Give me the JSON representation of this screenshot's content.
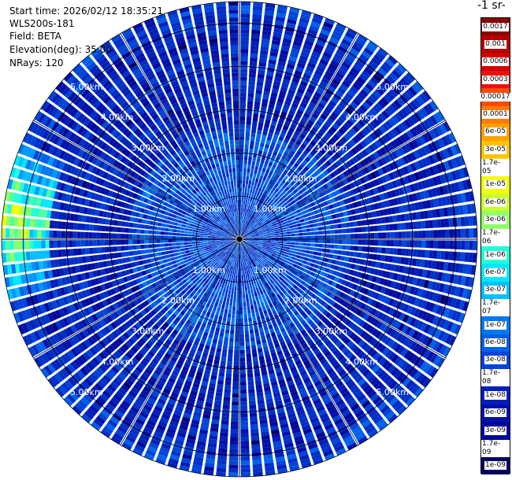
{
  "header": {
    "start_time": "Start time: 2026/02/12 18:35:21",
    "instrument": "WLS200s-181",
    "field": "Field: BETA",
    "elevation": "Elevation(deg): 35.00",
    "nrays": "NRays: 120"
  },
  "colorbar": {
    "title": "-1 sr-",
    "labels": [
      "0.0017",
      "0.001",
      "0.0006",
      "0.0003",
      "0.00017",
      "0.0001",
      "6e-05",
      "3e-05",
      "1.7e-05",
      "1e-05",
      "6e-06",
      "3e-06",
      "1.7e-06",
      "1e-06",
      "6e-07",
      "3e-07",
      "1.7e-07",
      "1e-07",
      "6e-08",
      "3e-08",
      "1.7e-08",
      "1e-08",
      "6e-09",
      "3e-09",
      "1.7e-09",
      "1e-09"
    ],
    "colors": [
      "#8b0000",
      "#b30000",
      "#d40000",
      "#ee1010",
      "#ff4a00",
      "#ff7a00",
      "#ffa000",
      "#ffc400",
      "#ffe000",
      "#f4ff00",
      "#c8ff30",
      "#90ff68",
      "#50ffa0",
      "#20ffd8",
      "#00e8ff",
      "#00c0ff",
      "#0098ff",
      "#0078f0",
      "#0060e8",
      "#0044d8",
      "#0030c8",
      "#0020b8",
      "#0010a8",
      "#000898",
      "#000080",
      "#000060"
    ]
  },
  "chart_data": {
    "type": "heatmap",
    "projection": "polar-ppi",
    "title": "",
    "field": "BETA",
    "elevation_deg": 35.0,
    "n_rays": 120,
    "range_rings_km": [
      1,
      2,
      3,
      4,
      5
    ],
    "ring_labels": [
      "1.00km",
      "2.00km",
      "3.00km",
      "4.00km",
      "5.00km"
    ],
    "max_range_km": 5.5,
    "color_scale": "log",
    "value_range": [
      1e-09,
      0.0017
    ],
    "dominant_value": 1e-08,
    "near_field_value": 3e-08,
    "ring_band_value": 1.7e-07,
    "high_return_sector": {
      "azimuth_deg": [
        255,
        295
      ],
      "range_km": [
        4.4,
        5.5
      ],
      "peak_value": 0.0001
    }
  }
}
